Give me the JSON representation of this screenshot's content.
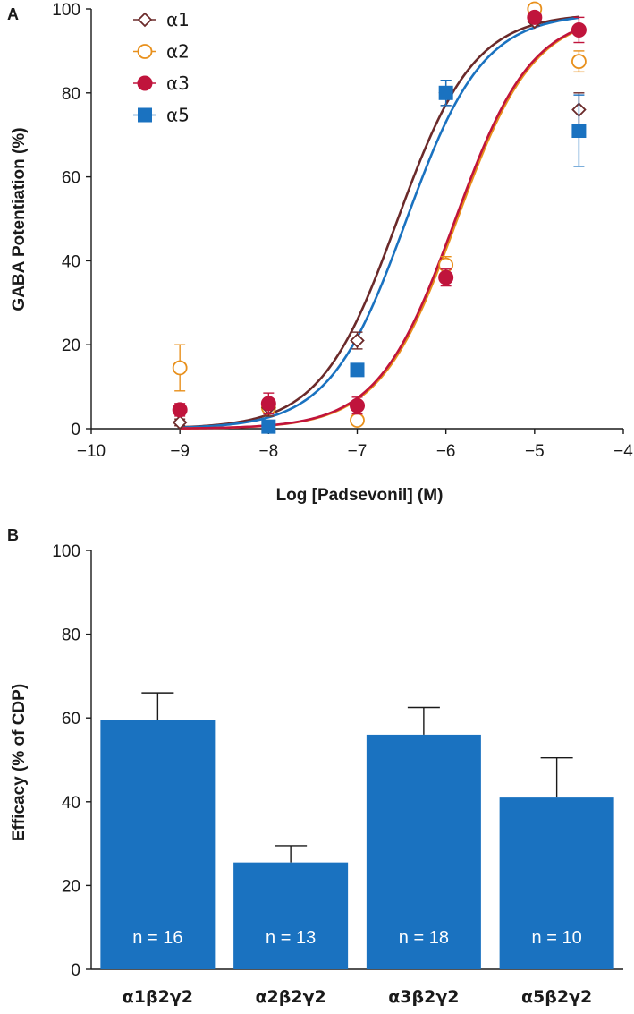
{
  "chart_data": [
    {
      "panel": "A",
      "type": "scatter",
      "xlabel": "Log [Padsevonil] (M)",
      "ylabel": "GABA Potentiation (%)",
      "xlim": [
        -10,
        -4
      ],
      "ylim": [
        0,
        100
      ],
      "xticks": [
        -10,
        -9,
        -8,
        -7,
        -6,
        -5,
        -4
      ],
      "yticks": [
        0,
        20,
        40,
        60,
        80,
        100
      ],
      "xtick_labels": [
        "−10",
        "−9",
        "−8",
        "−7",
        "−6",
        "−5",
        "−4"
      ],
      "ytick_labels": [
        "0",
        "20",
        "40",
        "60",
        "80",
        "100"
      ],
      "legend_position": "top-left",
      "grid": false,
      "series": [
        {
          "name": "α1",
          "marker": "diamond-open",
          "color": "#6b2a2a",
          "points": [
            {
              "x": -9,
              "y": 1.5,
              "err": 0.8
            },
            {
              "x": -8,
              "y": 5,
              "err": 2
            },
            {
              "x": -7,
              "y": 21,
              "err": 2
            },
            {
              "x": -6,
              "y": 80,
              "err": 3
            },
            {
              "x": -5,
              "y": 97,
              "err": 1
            },
            {
              "x": -4.5,
              "y": 76,
              "err": 4
            }
          ],
          "fit": {
            "bottom": 0,
            "top": 99,
            "logEC50": -6.55,
            "hill": 1
          }
        },
        {
          "name": "α2",
          "marker": "circle-open",
          "color": "#e8901c",
          "points": [
            {
              "x": -9,
              "y": 14.5,
              "err": 5.5
            },
            {
              "x": -8,
              "y": 5,
              "err": 2
            },
            {
              "x": -7,
              "y": 2,
              "err": 1
            },
            {
              "x": -6,
              "y": 39,
              "err": 2
            },
            {
              "x": -5,
              "y": 100,
              "err": 1
            },
            {
              "x": -4.5,
              "y": 87.5,
              "err": 2.5
            }
          ],
          "fit": {
            "bottom": 0,
            "top": 99,
            "logEC50": -5.88,
            "hill": 1
          }
        },
        {
          "name": "α3",
          "marker": "circle-filled",
          "color": "#c0143c",
          "points": [
            {
              "x": -9,
              "y": 4.5,
              "err": 1.5
            },
            {
              "x": -8,
              "y": 6,
              "err": 2.5
            },
            {
              "x": -7,
              "y": 5.5,
              "err": 2
            },
            {
              "x": -6,
              "y": 36,
              "err": 2
            },
            {
              "x": -5,
              "y": 98,
              "err": 1
            },
            {
              "x": -4.5,
              "y": 95,
              "err": 3
            }
          ],
          "fit": {
            "bottom": 0,
            "top": 99,
            "logEC50": -5.9,
            "hill": 1
          }
        },
        {
          "name": "α5",
          "marker": "square-filled",
          "color": "#1a72c0",
          "points": [
            {
              "x": -8,
              "y": 0.5,
              "err": 0.5
            },
            {
              "x": -7,
              "y": 14,
              "err": 1
            },
            {
              "x": -6,
              "y": 80,
              "err": 3
            },
            {
              "x": -4.5,
              "y": 71,
              "err": 8.5
            }
          ],
          "fit": {
            "bottom": 0,
            "top": 99,
            "logEC50": -6.45,
            "hill": 1
          }
        }
      ]
    },
    {
      "panel": "B",
      "type": "bar",
      "ylabel": "Efficacy (% of CDP)",
      "ylim": [
        0,
        100
      ],
      "yticks": [
        0,
        20,
        40,
        60,
        80,
        100
      ],
      "ytick_labels": [
        "0",
        "20",
        "40",
        "60",
        "80",
        "100"
      ],
      "bar_color": "#1a72c0",
      "categories": [
        "α1β2γ2",
        "α2β2γ2",
        "α3β2γ2",
        "α5β2γ2"
      ],
      "values": [
        59.5,
        25.5,
        56,
        41
      ],
      "errors": [
        6.5,
        4,
        6.5,
        9.5
      ],
      "n_labels": [
        "n = 16",
        "n = 13",
        "n = 18",
        "n = 10"
      ],
      "grid": false
    }
  ]
}
